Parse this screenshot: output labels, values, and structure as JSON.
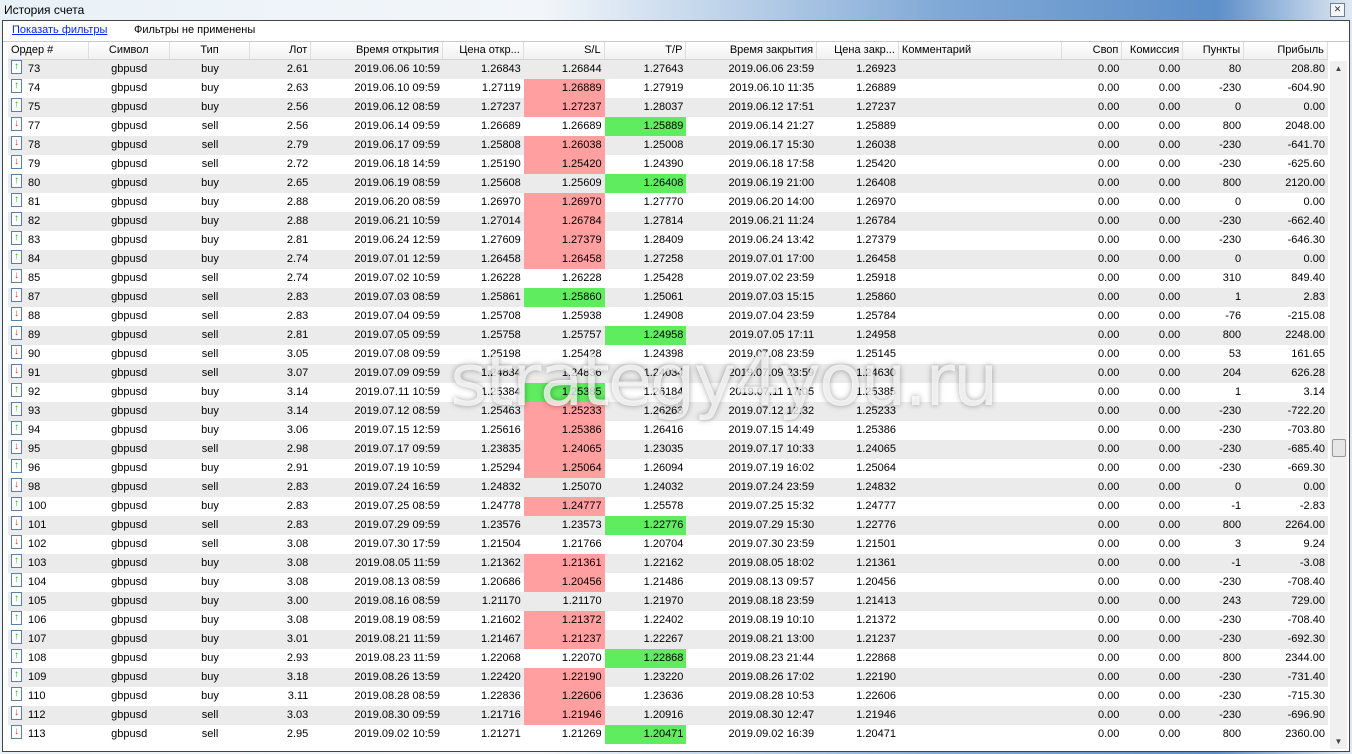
{
  "window": {
    "title": "История счета",
    "close_icon": "close-icon"
  },
  "filters": {
    "show_filters_label": "Показать фильтры",
    "status": "Фильтры не применены"
  },
  "colors": {
    "sl_hit": "#ff9f9f",
    "tp_hit": "#5fec5f",
    "row_alt": "#ebebeb"
  },
  "watermark": "strategy4you.ru",
  "table": {
    "columns": [
      "Ордер #",
      "Символ",
      "Тип",
      "Лот",
      "Время открытия",
      "Цена откр...",
      "S/L",
      "T/P",
      "Время закрытия",
      "Цена закр...",
      "Комментарий",
      "Своп",
      "Комиссия",
      "Пункты",
      "Прибыль"
    ],
    "rows": [
      {
        "cells": [
          "73",
          "gbpusd",
          "buy",
          "2.61",
          "2019.06.06 10:59",
          "1.26843",
          "1.26844",
          "1.27643",
          "2019.06.06 23:59",
          "1.26923",
          "",
          "0.00",
          "0.00",
          "80",
          "208.80"
        ],
        "sl": "",
        "tp": ""
      },
      {
        "cells": [
          "74",
          "gbpusd",
          "buy",
          "2.63",
          "2019.06.10 09:59",
          "1.27119",
          "1.26889",
          "1.27919",
          "2019.06.10 11:35",
          "1.26889",
          "",
          "0.00",
          "0.00",
          "-230",
          "-604.90"
        ],
        "sl": "red",
        "tp": ""
      },
      {
        "cells": [
          "75",
          "gbpusd",
          "buy",
          "2.56",
          "2019.06.12 08:59",
          "1.27237",
          "1.27237",
          "1.28037",
          "2019.06.12 17:51",
          "1.27237",
          "",
          "0.00",
          "0.00",
          "0",
          "0.00"
        ],
        "sl": "red",
        "tp": ""
      },
      {
        "cells": [
          "77",
          "gbpusd",
          "sell",
          "2.56",
          "2019.06.14 09:59",
          "1.26689",
          "1.26689",
          "1.25889",
          "2019.06.14 21:27",
          "1.25889",
          "",
          "0.00",
          "0.00",
          "800",
          "2048.00"
        ],
        "sl": "",
        "tp": "green"
      },
      {
        "cells": [
          "78",
          "gbpusd",
          "sell",
          "2.79",
          "2019.06.17 09:59",
          "1.25808",
          "1.26038",
          "1.25008",
          "2019.06.17 15:30",
          "1.26038",
          "",
          "0.00",
          "0.00",
          "-230",
          "-641.70"
        ],
        "sl": "red",
        "tp": ""
      },
      {
        "cells": [
          "79",
          "gbpusd",
          "sell",
          "2.72",
          "2019.06.18 14:59",
          "1.25190",
          "1.25420",
          "1.24390",
          "2019.06.18 17:58",
          "1.25420",
          "",
          "0.00",
          "0.00",
          "-230",
          "-625.60"
        ],
        "sl": "red",
        "tp": ""
      },
      {
        "cells": [
          "80",
          "gbpusd",
          "buy",
          "2.65",
          "2019.06.19 08:59",
          "1.25608",
          "1.25609",
          "1.26408",
          "2019.06.19 21:00",
          "1.26408",
          "",
          "0.00",
          "0.00",
          "800",
          "2120.00"
        ],
        "sl": "",
        "tp": "green"
      },
      {
        "cells": [
          "81",
          "gbpusd",
          "buy",
          "2.88",
          "2019.06.20 08:59",
          "1.26970",
          "1.26970",
          "1.27770",
          "2019.06.20 14:00",
          "1.26970",
          "",
          "0.00",
          "0.00",
          "0",
          "0.00"
        ],
        "sl": "red",
        "tp": ""
      },
      {
        "cells": [
          "82",
          "gbpusd",
          "buy",
          "2.88",
          "2019.06.21 10:59",
          "1.27014",
          "1.26784",
          "1.27814",
          "2019.06.21 11:24",
          "1.26784",
          "",
          "0.00",
          "0.00",
          "-230",
          "-662.40"
        ],
        "sl": "red",
        "tp": ""
      },
      {
        "cells": [
          "83",
          "gbpusd",
          "buy",
          "2.81",
          "2019.06.24 12:59",
          "1.27609",
          "1.27379",
          "1.28409",
          "2019.06.24 13:42",
          "1.27379",
          "",
          "0.00",
          "0.00",
          "-230",
          "-646.30"
        ],
        "sl": "red",
        "tp": ""
      },
      {
        "cells": [
          "84",
          "gbpusd",
          "buy",
          "2.74",
          "2019.07.01 12:59",
          "1.26458",
          "1.26458",
          "1.27258",
          "2019.07.01 17:00",
          "1.26458",
          "",
          "0.00",
          "0.00",
          "0",
          "0.00"
        ],
        "sl": "red",
        "tp": ""
      },
      {
        "cells": [
          "85",
          "gbpusd",
          "sell",
          "2.74",
          "2019.07.02 10:59",
          "1.26228",
          "1.26228",
          "1.25428",
          "2019.07.02 23:59",
          "1.25918",
          "",
          "0.00",
          "0.00",
          "310",
          "849.40"
        ],
        "sl": "",
        "tp": ""
      },
      {
        "cells": [
          "87",
          "gbpusd",
          "sell",
          "2.83",
          "2019.07.03 08:59",
          "1.25861",
          "1.25860",
          "1.25061",
          "2019.07.03 15:15",
          "1.25860",
          "",
          "0.00",
          "0.00",
          "1",
          "2.83"
        ],
        "sl": "green",
        "tp": ""
      },
      {
        "cells": [
          "88",
          "gbpusd",
          "sell",
          "2.83",
          "2019.07.04 09:59",
          "1.25708",
          "1.25938",
          "1.24908",
          "2019.07.04 23:59",
          "1.25784",
          "",
          "0.00",
          "0.00",
          "-76",
          "-215.08"
        ],
        "sl": "",
        "tp": ""
      },
      {
        "cells": [
          "89",
          "gbpusd",
          "sell",
          "2.81",
          "2019.07.05 09:59",
          "1.25758",
          "1.25757",
          "1.24958",
          "2019.07.05 17:11",
          "1.24958",
          "",
          "0.00",
          "0.00",
          "800",
          "2248.00"
        ],
        "sl": "",
        "tp": "green"
      },
      {
        "cells": [
          "90",
          "gbpusd",
          "sell",
          "3.05",
          "2019.07.08 09:59",
          "1.25198",
          "1.25428",
          "1.24398",
          "2019.07.08 23:59",
          "1.25145",
          "",
          "0.00",
          "0.00",
          "53",
          "161.65"
        ],
        "sl": "",
        "tp": ""
      },
      {
        "cells": [
          "91",
          "gbpusd",
          "sell",
          "3.07",
          "2019.07.09 09:59",
          "1.24834",
          "1.24836",
          "1.24034",
          "2019.07.09 23:59",
          "1.24630",
          "",
          "0.00",
          "0.00",
          "204",
          "626.28"
        ],
        "sl": "",
        "tp": ""
      },
      {
        "cells": [
          "92",
          "gbpusd",
          "buy",
          "3.14",
          "2019.07.11 10:59",
          "1.25384",
          "1.25385",
          "1.26184",
          "2019.07.11 17:05",
          "1.25385",
          "",
          "0.00",
          "0.00",
          "1",
          "3.14"
        ],
        "sl": "green",
        "tp": ""
      },
      {
        "cells": [
          "93",
          "gbpusd",
          "buy",
          "3.14",
          "2019.07.12 08:59",
          "1.25463",
          "1.25233",
          "1.26263",
          "2019.07.12 12:32",
          "1.25233",
          "",
          "0.00",
          "0.00",
          "-230",
          "-722.20"
        ],
        "sl": "red",
        "tp": ""
      },
      {
        "cells": [
          "94",
          "gbpusd",
          "buy",
          "3.06",
          "2019.07.15 12:59",
          "1.25616",
          "1.25386",
          "1.26416",
          "2019.07.15 14:49",
          "1.25386",
          "",
          "0.00",
          "0.00",
          "-230",
          "-703.80"
        ],
        "sl": "red",
        "tp": ""
      },
      {
        "cells": [
          "95",
          "gbpusd",
          "sell",
          "2.98",
          "2019.07.17 09:59",
          "1.23835",
          "1.24065",
          "1.23035",
          "2019.07.17 10:33",
          "1.24065",
          "",
          "0.00",
          "0.00",
          "-230",
          "-685.40"
        ],
        "sl": "red",
        "tp": ""
      },
      {
        "cells": [
          "96",
          "gbpusd",
          "buy",
          "2.91",
          "2019.07.19 10:59",
          "1.25294",
          "1.25064",
          "1.26094",
          "2019.07.19 16:02",
          "1.25064",
          "",
          "0.00",
          "0.00",
          "-230",
          "-669.30"
        ],
        "sl": "red",
        "tp": ""
      },
      {
        "cells": [
          "98",
          "gbpusd",
          "sell",
          "2.83",
          "2019.07.24 16:59",
          "1.24832",
          "1.25070",
          "1.24032",
          "2019.07.24 23:59",
          "1.24832",
          "",
          "0.00",
          "0.00",
          "0",
          "0.00"
        ],
        "sl": "",
        "tp": ""
      },
      {
        "cells": [
          "100",
          "gbpusd",
          "buy",
          "2.83",
          "2019.07.25 08:59",
          "1.24778",
          "1.24777",
          "1.25578",
          "2019.07.25 15:32",
          "1.24777",
          "",
          "0.00",
          "0.00",
          "-1",
          "-2.83"
        ],
        "sl": "red",
        "tp": ""
      },
      {
        "cells": [
          "101",
          "gbpusd",
          "sell",
          "2.83",
          "2019.07.29 09:59",
          "1.23576",
          "1.23573",
          "1.22776",
          "2019.07.29 15:30",
          "1.22776",
          "",
          "0.00",
          "0.00",
          "800",
          "2264.00"
        ],
        "sl": "",
        "tp": "green"
      },
      {
        "cells": [
          "102",
          "gbpusd",
          "sell",
          "3.08",
          "2019.07.30 17:59",
          "1.21504",
          "1.21766",
          "1.20704",
          "2019.07.30 23:59",
          "1.21501",
          "",
          "0.00",
          "0.00",
          "3",
          "9.24"
        ],
        "sl": "",
        "tp": ""
      },
      {
        "cells": [
          "103",
          "gbpusd",
          "buy",
          "3.08",
          "2019.08.05 11:59",
          "1.21362",
          "1.21361",
          "1.22162",
          "2019.08.05 18:02",
          "1.21361",
          "",
          "0.00",
          "0.00",
          "-1",
          "-3.08"
        ],
        "sl": "red",
        "tp": ""
      },
      {
        "cells": [
          "104",
          "gbpusd",
          "buy",
          "3.08",
          "2019.08.13 08:59",
          "1.20686",
          "1.20456",
          "1.21486",
          "2019.08.13 09:57",
          "1.20456",
          "",
          "0.00",
          "0.00",
          "-230",
          "-708.40"
        ],
        "sl": "red",
        "tp": ""
      },
      {
        "cells": [
          "105",
          "gbpusd",
          "buy",
          "3.00",
          "2019.08.16 08:59",
          "1.21170",
          "1.21170",
          "1.21970",
          "2019.08.18 23:59",
          "1.21413",
          "",
          "0.00",
          "0.00",
          "243",
          "729.00"
        ],
        "sl": "",
        "tp": ""
      },
      {
        "cells": [
          "106",
          "gbpusd",
          "buy",
          "3.08",
          "2019.08.19 08:59",
          "1.21602",
          "1.21372",
          "1.22402",
          "2019.08.19 10:10",
          "1.21372",
          "",
          "0.00",
          "0.00",
          "-230",
          "-708.40"
        ],
        "sl": "red",
        "tp": ""
      },
      {
        "cells": [
          "107",
          "gbpusd",
          "buy",
          "3.01",
          "2019.08.21 11:59",
          "1.21467",
          "1.21237",
          "1.22267",
          "2019.08.21 13:00",
          "1.21237",
          "",
          "0.00",
          "0.00",
          "-230",
          "-692.30"
        ],
        "sl": "red",
        "tp": ""
      },
      {
        "cells": [
          "108",
          "gbpusd",
          "buy",
          "2.93",
          "2019.08.23 11:59",
          "1.22068",
          "1.22070",
          "1.22868",
          "2019.08.23 21:44",
          "1.22868",
          "",
          "0.00",
          "0.00",
          "800",
          "2344.00"
        ],
        "sl": "",
        "tp": "green"
      },
      {
        "cells": [
          "109",
          "gbpusd",
          "buy",
          "3.18",
          "2019.08.26 13:59",
          "1.22420",
          "1.22190",
          "1.23220",
          "2019.08.26 17:02",
          "1.22190",
          "",
          "0.00",
          "0.00",
          "-230",
          "-731.40"
        ],
        "sl": "red",
        "tp": ""
      },
      {
        "cells": [
          "110",
          "gbpusd",
          "buy",
          "3.11",
          "2019.08.28 08:59",
          "1.22836",
          "1.22606",
          "1.23636",
          "2019.08.28 10:53",
          "1.22606",
          "",
          "0.00",
          "0.00",
          "-230",
          "-715.30"
        ],
        "sl": "red",
        "tp": ""
      },
      {
        "cells": [
          "112",
          "gbpusd",
          "sell",
          "3.03",
          "2019.08.30 09:59",
          "1.21716",
          "1.21946",
          "1.20916",
          "2019.08.30 12:47",
          "1.21946",
          "",
          "0.00",
          "0.00",
          "-230",
          "-696.90"
        ],
        "sl": "red",
        "tp": ""
      },
      {
        "cells": [
          "113",
          "gbpusd",
          "sell",
          "2.95",
          "2019.09.02 10:59",
          "1.21271",
          "1.21269",
          "1.20471",
          "2019.09.02 16:39",
          "1.20471",
          "",
          "0.00",
          "0.00",
          "800",
          "2360.00"
        ],
        "sl": "",
        "tp": "green"
      }
    ]
  }
}
